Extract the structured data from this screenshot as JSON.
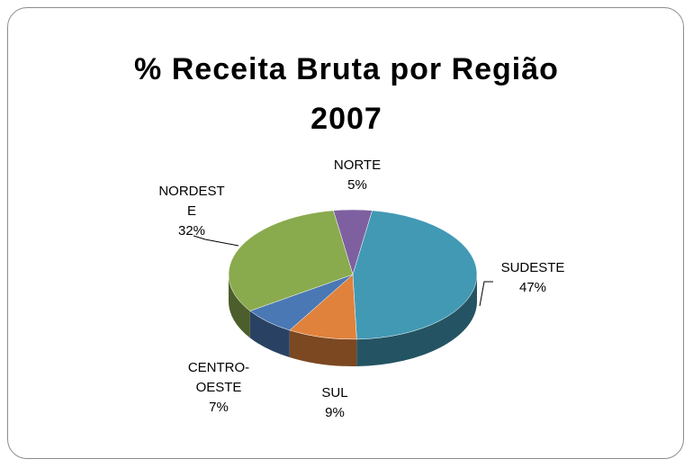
{
  "chart_data": {
    "type": "pie3d",
    "title": "% Receita Bruta por Região 2007",
    "categories": [
      "NORTE",
      "SUDESTE",
      "SUL",
      "CENTRO-OESTE",
      "NORDESTE"
    ],
    "values": [
      5,
      47,
      9,
      7,
      32
    ],
    "value_labels": [
      "5%",
      "47%",
      "9%",
      "7%",
      "32%"
    ],
    "colors": [
      "#7e60a0",
      "#4299b4",
      "#e0823c",
      "#4a78b4",
      "#8aaa4e"
    ]
  }
}
